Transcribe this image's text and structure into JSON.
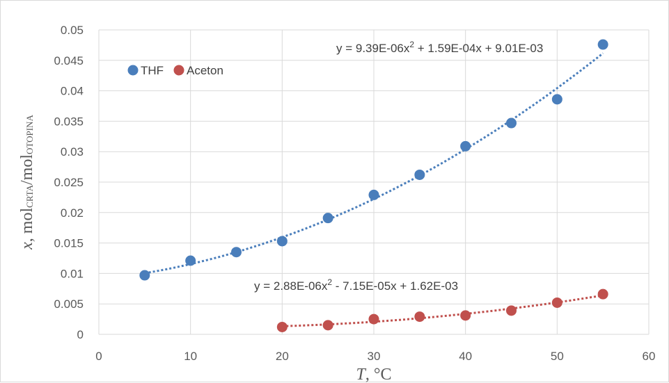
{
  "chart_data": {
    "type": "scatter",
    "xlabel": {
      "var": "T",
      "rest": ", °C"
    },
    "ylabel": {
      "var": "x",
      "main": ", mol",
      "sub1": "CRTA",
      "mid": "/mol",
      "sub2": "OTOPINA"
    },
    "xlim": [
      0,
      60
    ],
    "ylim": [
      0,
      0.05
    ],
    "x_ticks": [
      "0",
      "10",
      "20",
      "30",
      "40",
      "50",
      "60"
    ],
    "y_ticks": [
      "0",
      "0.005",
      "0.01",
      "0.015",
      "0.02",
      "0.025",
      "0.03",
      "0.035",
      "0.04",
      "0.045",
      "0.05"
    ],
    "grid": true,
    "legend_position": "top-left",
    "series": [
      {
        "name": "THF",
        "color": "#4a7ebb",
        "x": [
          5,
          10,
          15,
          20,
          25,
          30,
          35,
          40,
          45,
          50,
          55
        ],
        "y": [
          0.0097,
          0.0121,
          0.0135,
          0.0153,
          0.0191,
          0.0229,
          0.0262,
          0.0309,
          0.0347,
          0.0386,
          0.0476
        ],
        "trendline": {
          "type": "polynomial",
          "coefficients": [
            9.39e-06,
            0.000159,
            0.00901
          ],
          "x_range": [
            5,
            55
          ],
          "equation_text": "y = 9.39E-06x",
          "equation_rest": " + 1.59E-04x + 9.01E-03"
        }
      },
      {
        "name": "Aceton",
        "color": "#c0504d",
        "x": [
          20,
          25,
          30,
          35,
          40,
          45,
          50,
          55
        ],
        "y": [
          0.0012,
          0.0015,
          0.0025,
          0.0029,
          0.0031,
          0.0039,
          0.0052,
          0.0066
        ],
        "trendline": {
          "type": "polynomial",
          "coefficients": [
            2.88e-06,
            -7.15e-05,
            0.00162
          ],
          "x_range": [
            20,
            55
          ],
          "equation_text": "y = 2.88E-06x",
          "equation_rest": " - 7.15E-05x + 1.62E-03"
        }
      }
    ]
  }
}
